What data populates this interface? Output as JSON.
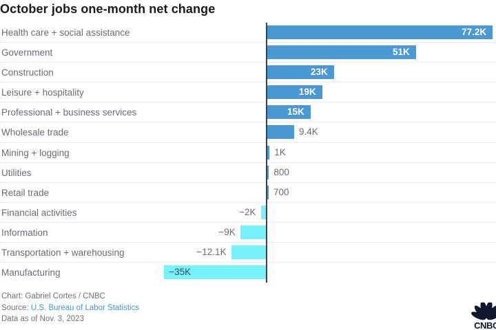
{
  "chart_data": {
    "type": "bar",
    "orientation": "horizontal",
    "title": "October jobs one-month net change",
    "categories": [
      "Health care + social assistance",
      "Government",
      "Construction",
      "Leisure + hospitality",
      "Professional + business services",
      "Wholesale trade",
      "Mining + logging",
      "Utilities",
      "Retail trade",
      "Financial activities",
      "Information",
      "Transportation + warehousing",
      "Manufacturing"
    ],
    "values_thousands": [
      77.2,
      51,
      23,
      19,
      15,
      9.4,
      1,
      0.8,
      0.7,
      -2,
      -9,
      -12.1,
      -35
    ],
    "value_labels": [
      "77.2K",
      "51K",
      "23K",
      "19K",
      "15K",
      "9.4K",
      "1K",
      "800",
      "700",
      "−2K",
      "−9K",
      "−12.1K",
      "−35K"
    ],
    "xlim_thousands": [
      -40,
      80
    ],
    "grid": "dotted-row-separators",
    "legend": "none",
    "positive_color": "#4a98d4",
    "negative_color": "#76f2fe",
    "axis_line_color": "#404040",
    "label_color": "#6b6b76",
    "inside_label_color": "#ffffff",
    "negative_inside_label_color": "#3a4a55"
  },
  "footer": {
    "credit": "Chart: Gabriel Cortes / CNBC",
    "source_prefix": "Source: ",
    "source_link": "U.S. Bureau of Labor Statistics",
    "as_of": "Data as of Nov. 3, 2023"
  },
  "logo": {
    "text": "CNBC",
    "color": "#10172e"
  }
}
